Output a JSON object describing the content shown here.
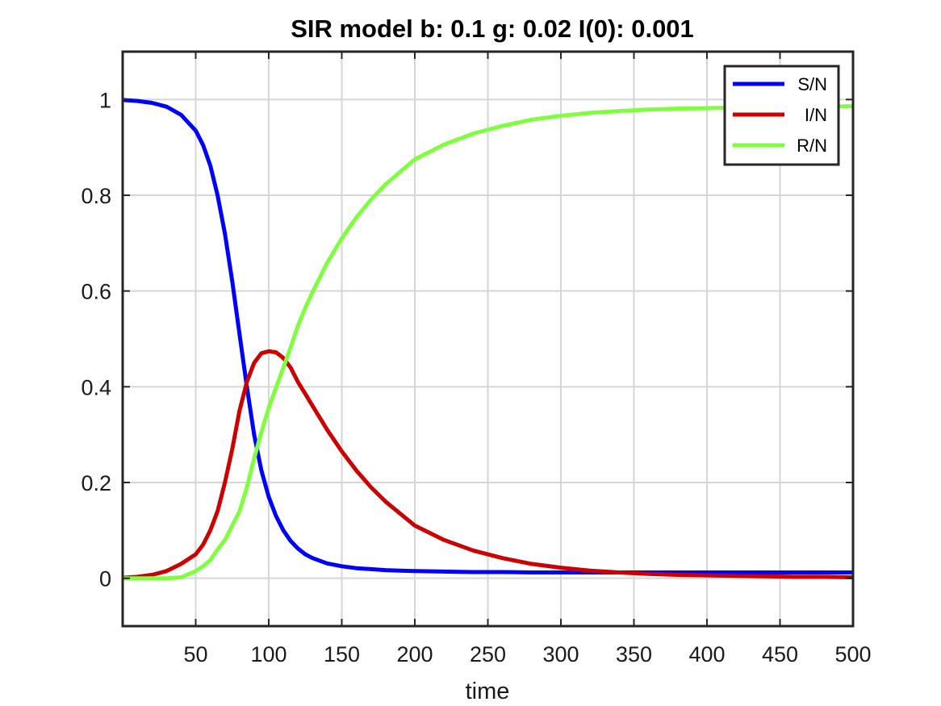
{
  "chart_data": {
    "type": "line",
    "title": "SIR model  b: 0.1  g: 0.02  I(0): 0.001",
    "xlabel": "time",
    "ylabel": "",
    "xlim": [
      0,
      500
    ],
    "ylim": [
      -0.1,
      1.1
    ],
    "xticks": [
      50,
      100,
      150,
      200,
      250,
      300,
      350,
      400,
      450,
      500
    ],
    "xtick_labels": [
      "50",
      "100",
      "150",
      "200",
      "250",
      "300",
      "350",
      "400",
      "450",
      "500"
    ],
    "yticks": [
      0,
      0.2,
      0.4,
      0.6,
      0.8,
      1
    ],
    "ytick_labels": [
      "0",
      "0.2",
      "0.4",
      "0.6",
      "0.8",
      "1"
    ],
    "grid": true,
    "legend_position": "top-right",
    "x": [
      0,
      10,
      20,
      30,
      40,
      50,
      55,
      60,
      65,
      70,
      75,
      80,
      85,
      90,
      95,
      100,
      105,
      110,
      115,
      120,
      125,
      130,
      140,
      150,
      160,
      170,
      180,
      190,
      200,
      220,
      240,
      260,
      280,
      300,
      320,
      340,
      360,
      380,
      400,
      420,
      440,
      460,
      480,
      500
    ],
    "series": [
      {
        "name": "S/N",
        "color": "#0000ff",
        "values": [
          0.999,
          0.997,
          0.993,
          0.985,
          0.968,
          0.935,
          0.905,
          0.862,
          0.8,
          0.72,
          0.62,
          0.51,
          0.4,
          0.3,
          0.225,
          0.17,
          0.13,
          0.1,
          0.078,
          0.062,
          0.05,
          0.042,
          0.031,
          0.025,
          0.021,
          0.019,
          0.017,
          0.016,
          0.015,
          0.014,
          0.013,
          0.013,
          0.012,
          0.012,
          0.012,
          0.012,
          0.012,
          0.012,
          0.012,
          0.012,
          0.012,
          0.012,
          0.012,
          0.012
        ]
      },
      {
        "name": "I/N",
        "color": "#cc0000",
        "values": [
          0.001,
          0.003,
          0.007,
          0.015,
          0.03,
          0.05,
          0.07,
          0.1,
          0.14,
          0.2,
          0.27,
          0.35,
          0.41,
          0.45,
          0.47,
          0.474,
          0.472,
          0.46,
          0.44,
          0.41,
          0.385,
          0.36,
          0.31,
          0.265,
          0.225,
          0.19,
          0.16,
          0.135,
          0.11,
          0.08,
          0.058,
          0.042,
          0.03,
          0.022,
          0.016,
          0.012,
          0.009,
          0.007,
          0.006,
          0.005,
          0.004,
          0.003,
          0.003,
          0.002
        ]
      },
      {
        "name": "R/N",
        "color": "#80ff40",
        "values": [
          0.0,
          0.0,
          0.0,
          0.0,
          0.002,
          0.015,
          0.025,
          0.038,
          0.06,
          0.08,
          0.11,
          0.14,
          0.19,
          0.25,
          0.305,
          0.356,
          0.398,
          0.44,
          0.482,
          0.528,
          0.565,
          0.598,
          0.659,
          0.71,
          0.754,
          0.791,
          0.823,
          0.849,
          0.875,
          0.906,
          0.929,
          0.945,
          0.958,
          0.966,
          0.972,
          0.976,
          0.979,
          0.981,
          0.982,
          0.983,
          0.984,
          0.985,
          0.985,
          0.986
        ]
      }
    ]
  }
}
